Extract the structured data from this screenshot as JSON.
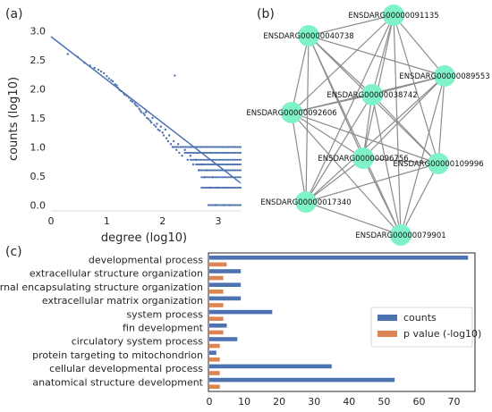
{
  "panels": {
    "a": "(a)",
    "b": "(b)",
    "c": "(c)"
  },
  "colors": {
    "blue": "#4c72b0",
    "orange": "#dd8452",
    "node": "#7ff2c8",
    "edge": "#8c8c8c"
  },
  "chart_data": [
    {
      "type": "scatter",
      "xlabel": "degree (log10)",
      "ylabel": "counts (log10)",
      "xlim": [
        0,
        3.4
      ],
      "ylim": [
        -0.1,
        3.1
      ],
      "xticks": [
        "0",
        "1",
        "2",
        "3"
      ],
      "yticks": [
        "0.0",
        "0.5",
        "1.0",
        "1.5",
        "2.0",
        "2.5",
        "3.0"
      ],
      "fit_line": [
        [
          0,
          2.9
        ],
        [
          3.4,
          0.38
        ]
      ],
      "points": [
        [
          0.3,
          2.6
        ],
        [
          0.48,
          2.55
        ],
        [
          0.6,
          2.45
        ],
        [
          0.7,
          2.4
        ],
        [
          0.78,
          2.36
        ],
        [
          0.85,
          2.33
        ],
        [
          0.9,
          2.3
        ],
        [
          0.95,
          2.27
        ],
        [
          1.0,
          2.22
        ],
        [
          1.04,
          2.18
        ],
        [
          1.08,
          2.15
        ],
        [
          1.11,
          2.13
        ],
        [
          1.15,
          2.08
        ],
        [
          1.18,
          2.06
        ],
        [
          1.2,
          2.02
        ],
        [
          1.23,
          1.98
        ],
        [
          1.26,
          1.96
        ],
        [
          1.3,
          1.93
        ],
        [
          1.32,
          1.9
        ],
        [
          1.36,
          1.88
        ],
        [
          1.4,
          1.85
        ],
        [
          1.43,
          1.8
        ],
        [
          1.46,
          1.78
        ],
        [
          1.5,
          1.75
        ],
        [
          1.52,
          1.72
        ],
        [
          1.55,
          1.7
        ],
        [
          1.58,
          1.66
        ],
        [
          1.6,
          1.63
        ],
        [
          1.62,
          1.6
        ],
        [
          1.66,
          1.58
        ],
        [
          1.68,
          1.55
        ],
        [
          1.7,
          1.6
        ],
        [
          1.72,
          1.5
        ],
        [
          1.75,
          1.48
        ],
        [
          1.78,
          1.45
        ],
        [
          1.8,
          1.42
        ],
        [
          1.82,
          1.5
        ],
        [
          1.85,
          1.38
        ],
        [
          1.88,
          1.35
        ],
        [
          1.9,
          1.4
        ],
        [
          1.92,
          1.3
        ],
        [
          1.95,
          1.28
        ],
        [
          1.97,
          1.35
        ],
        [
          2.0,
          1.25
        ],
        [
          2.02,
          1.2
        ],
        [
          2.05,
          1.3
        ],
        [
          2.07,
          1.15
        ],
        [
          2.1,
          1.1
        ],
        [
          2.12,
          1.2
        ],
        [
          2.15,
          1.05
        ],
        [
          2.18,
          1.0
        ],
        [
          2.2,
          1.1
        ],
        [
          2.22,
          2.23
        ],
        [
          2.25,
          0.95
        ],
        [
          2.28,
          1.05
        ],
        [
          2.3,
          0.9
        ],
        [
          2.35,
          0.85
        ],
        [
          2.4,
          0.95
        ],
        [
          2.45,
          0.78
        ],
        [
          2.5,
          0.85
        ],
        [
          2.55,
          0.7
        ],
        [
          2.6,
          0.78
        ],
        [
          2.65,
          0.6
        ],
        [
          2.7,
          0.7
        ],
        [
          2.75,
          0.48
        ],
        [
          2.8,
          0.6
        ],
        [
          2.85,
          0.3
        ],
        [
          2.9,
          0.48
        ],
        [
          2.95,
          0.0
        ],
        [
          3.0,
          0.3
        ],
        [
          3.1,
          0.0
        ],
        [
          3.2,
          0.0
        ]
      ],
      "bands": [
        {
          "y": 1.0,
          "x0": 2.2,
          "x1": 3.4
        },
        {
          "y": 0.9,
          "x0": 2.4,
          "x1": 3.4
        },
        {
          "y": 0.78,
          "x0": 2.5,
          "x1": 3.4
        },
        {
          "y": 0.7,
          "x0": 2.6,
          "x1": 3.4
        },
        {
          "y": 0.6,
          "x0": 2.65,
          "x1": 3.4
        },
        {
          "y": 0.48,
          "x0": 2.7,
          "x1": 3.4
        },
        {
          "y": 0.3,
          "x0": 2.7,
          "x1": 3.4
        },
        {
          "y": 0.0,
          "x0": 2.82,
          "x1": 3.4
        }
      ]
    },
    {
      "type": "bar",
      "orientation": "horizontal",
      "categories": [
        "developmental process",
        "extracellular structure organization",
        "external encapsulating structure organization",
        "extracellular matrix organization",
        "system process",
        "fin development",
        "circulatory system process",
        "protein targeting to mitochondrion",
        "cellular developmental process",
        "anatomical structure development"
      ],
      "series": [
        {
          "name": "counts",
          "values": [
            74,
            9,
            9,
            9,
            18,
            5,
            8,
            2,
            35,
            53
          ]
        },
        {
          "name": "p value (-log10)",
          "values": [
            5,
            4,
            4,
            4,
            4,
            4,
            3,
            3,
            3,
            3
          ]
        }
      ],
      "xlim": [
        0,
        76
      ],
      "xticks": [
        "0",
        "10",
        "20",
        "30",
        "40",
        "50",
        "60",
        "70"
      ],
      "legend_position": "center-right"
    }
  ],
  "network": {
    "nodes": [
      "ENSDARG00000091135",
      "ENSDARG00000040738",
      "ENSDARG00000089553",
      "ENSDARG00000038742",
      "ENSDARG00000092606",
      "ENSDARG00000109996",
      "ENSDARG00000096756",
      "ENSDARG00000017340",
      "ENSDARG00000079901"
    ]
  }
}
